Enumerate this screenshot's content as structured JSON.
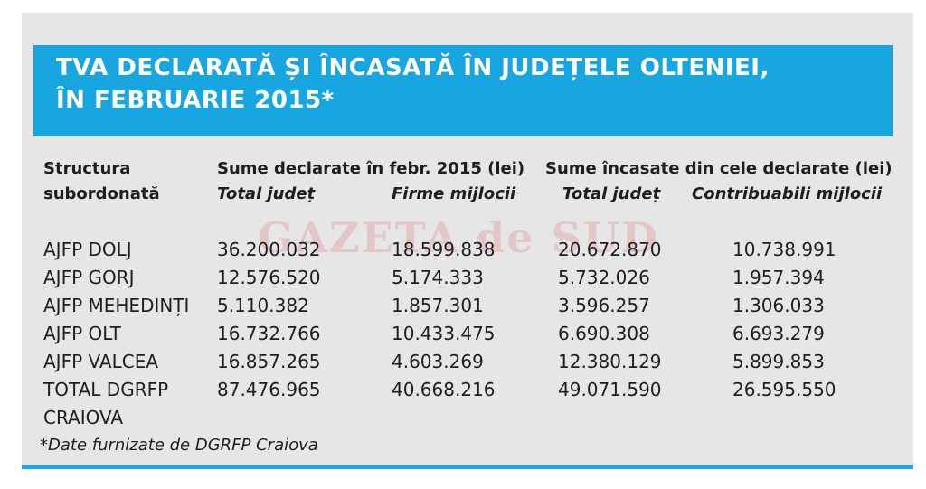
{
  "title": {
    "line1": "TVA DECLARATĂ ȘI ÎNCASATĂ ÎN JUDEȚELE OLTENIEI,",
    "line2": "ÎN FEBRUARIE 2015*"
  },
  "watermark": "GAZETA de SUD",
  "headers": {
    "structure_line1": "Structura",
    "structure_line2": "subordonată",
    "declared": "Sume declarate în febr. 2015 (lei)",
    "collected": "Sume încasate din cele declarate (lei)",
    "declared_total": "Total județ",
    "declared_mid": "Firme mijlocii",
    "collected_total": "Total județ",
    "collected_mid": "Contribuabili mijlocii"
  },
  "rows": [
    {
      "name": "AJFP DOLJ",
      "c1": "36.200.032",
      "c2": "18.599.838",
      "c3": "20.672.870",
      "c4": "10.738.991"
    },
    {
      "name": "AJFP GORJ",
      "c1": "12.576.520",
      "c2": "5.174.333",
      "c3": "5.732.026",
      "c4": "1.957.394"
    },
    {
      "name": "AJFP MEHEDINȚI",
      "c1": "5.110.382",
      "c2": "1.857.301",
      "c3": "3.596.257",
      "c4": "1.306.033"
    },
    {
      "name": "AJFP OLT",
      "c1": "16.732.766",
      "c2": "10.433.475",
      "c3": "6.690.308",
      "c4": "6.693.279"
    },
    {
      "name": "AJFP VALCEA",
      "c1": "16.857.265",
      "c2": "4.603.269",
      "c3": "12.380.129",
      "c4": "5.899.853"
    },
    {
      "name": "TOTAL DGRFP",
      "name2": "CRAIOVA",
      "c1": "87.476.965",
      "c2": "40.668.216",
      "c3": "49.071.590",
      "c4": "26.595.550"
    }
  ],
  "footnote": "*Date furnizate de DGRFP Craiova",
  "colors": {
    "band": "#18a6e0",
    "panel": "#e6e6e6",
    "rule": "#1fa8df"
  }
}
